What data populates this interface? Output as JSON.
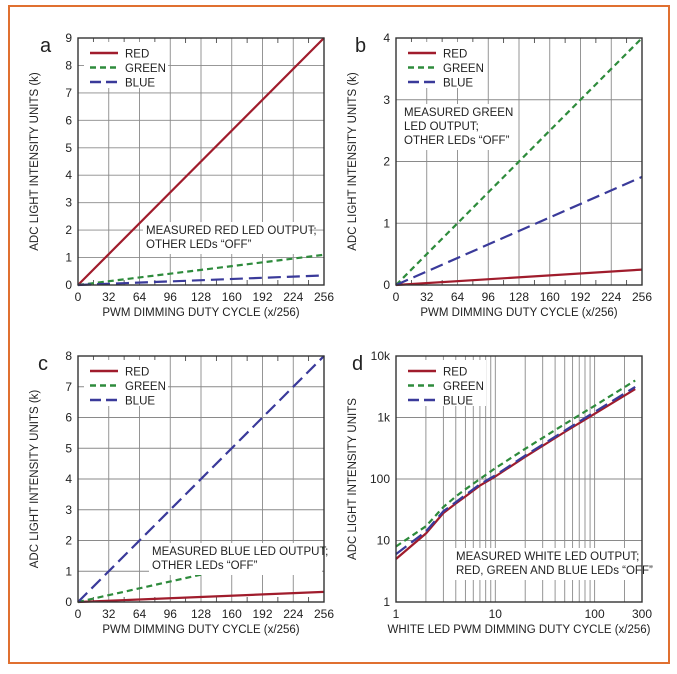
{
  "colors": {
    "frame": "#e07030",
    "red": "#a01c2c",
    "green": "#2e8b3c",
    "blue": "#3a3a9a",
    "grid": "#8a8a8a",
    "axis": "#333333"
  },
  "legend": [
    {
      "key": "red",
      "label": "RED",
      "style": "solid"
    },
    {
      "key": "green",
      "label": "GREEN",
      "style": "short-dash"
    },
    {
      "key": "blue",
      "label": "BLUE",
      "style": "long-dash"
    }
  ],
  "chart_data": [
    {
      "panel": "a",
      "type": "line",
      "title": "",
      "xlabel": "PWM DIMMING DUTY CYCLE (x/256)",
      "ylabel": "ADC LIGHT INTENSITY UNITS (k)",
      "xscale": "linear",
      "yscale": "linear",
      "xlim": [
        0,
        256
      ],
      "ylim": [
        0,
        9
      ],
      "xticks": [
        0,
        32,
        64,
        96,
        128,
        160,
        192,
        224,
        256
      ],
      "xtick_labels": [
        "0",
        "32",
        "64",
        "96",
        "128",
        "160",
        "192",
        "224",
        "256"
      ],
      "yticks": [
        0,
        1,
        2,
        3,
        4,
        5,
        6,
        7,
        8,
        9
      ],
      "ytick_labels": [
        "0",
        "1",
        "2",
        "3",
        "4",
        "5",
        "6",
        "7",
        "8",
        "9"
      ],
      "ygrid": [
        0,
        1,
        2,
        3,
        4,
        5,
        6,
        7,
        8,
        9
      ],
      "grid": true,
      "legend_position": "top-left",
      "annotation": [
        "MEASURED RED LED OUTPUT;",
        "OTHER LEDs “OFF”"
      ],
      "annotation_position": "lower-middle",
      "series": [
        {
          "name": "RED",
          "x": [
            0,
            256
          ],
          "y": [
            0,
            9.0
          ]
        },
        {
          "name": "GREEN",
          "x": [
            0,
            256
          ],
          "y": [
            0,
            1.1
          ]
        },
        {
          "name": "BLUE",
          "x": [
            0,
            256
          ],
          "y": [
            0,
            0.35
          ]
        }
      ]
    },
    {
      "panel": "b",
      "type": "line",
      "title": "",
      "xlabel": "PWM DIMMING DUTY CYCLE (x/256)",
      "ylabel": "ADC LIGHT INTENSITY UNITS (k)",
      "xscale": "linear",
      "yscale": "linear",
      "xlim": [
        0,
        256
      ],
      "ylim": [
        0,
        4
      ],
      "xticks": [
        0,
        32,
        64,
        96,
        128,
        160,
        192,
        224,
        256
      ],
      "xtick_labels": [
        "0",
        "32",
        "64",
        "96",
        "128",
        "160",
        "192",
        "224",
        "256"
      ],
      "yticks": [
        0,
        1,
        2,
        3,
        4
      ],
      "ytick_labels": [
        "0",
        "1",
        "2",
        "3",
        "4"
      ],
      "ygrid": [
        0,
        1,
        2,
        3,
        4
      ],
      "grid": true,
      "legend_position": "top-left",
      "annotation": [
        "MEASURED GREEN",
        "LED OUTPUT;",
        "OTHER LEDs “OFF”"
      ],
      "annotation_position": "upper-left",
      "series": [
        {
          "name": "RED",
          "x": [
            0,
            256
          ],
          "y": [
            0,
            0.25
          ]
        },
        {
          "name": "GREEN",
          "x": [
            0,
            256
          ],
          "y": [
            0,
            4.0
          ]
        },
        {
          "name": "BLUE",
          "x": [
            0,
            256
          ],
          "y": [
            0,
            1.75
          ]
        }
      ]
    },
    {
      "panel": "c",
      "type": "line",
      "title": "",
      "xlabel": "PWM DIMMING DUTY CYCLE (x/256)",
      "ylabel": "ADC LIGHT INTENSITY UNITS (k)",
      "xscale": "linear",
      "yscale": "linear",
      "xlim": [
        0,
        256
      ],
      "ylim": [
        0,
        8
      ],
      "xticks": [
        0,
        32,
        64,
        96,
        128,
        160,
        192,
        224,
        256
      ],
      "xtick_labels": [
        "0",
        "32",
        "64",
        "96",
        "128",
        "160",
        "192",
        "224",
        "256"
      ],
      "yticks": [
        0,
        1,
        2,
        3,
        4,
        5,
        6,
        7,
        8
      ],
      "ytick_labels": [
        "0",
        "1",
        "2",
        "3",
        "4",
        "5",
        "6",
        "7",
        "8"
      ],
      "ygrid": [
        0,
        1,
        2,
        3,
        4,
        5,
        6,
        7,
        8
      ],
      "grid": true,
      "legend_position": "top-left",
      "annotation": [
        "MEASURED BLUE LED OUTPUT;",
        "OTHER LEDs “OFF”"
      ],
      "annotation_position": "lower-middle",
      "series": [
        {
          "name": "RED",
          "x": [
            0,
            256
          ],
          "y": [
            0,
            0.33
          ]
        },
        {
          "name": "GREEN",
          "x": [
            0,
            256
          ],
          "y": [
            0,
            1.78
          ]
        },
        {
          "name": "BLUE",
          "x": [
            0,
            256
          ],
          "y": [
            0,
            8.0
          ]
        }
      ]
    },
    {
      "panel": "d",
      "type": "line",
      "title": "",
      "xlabel": "WHITE LED PWM DIMMING DUTY CYCLE (x/256)",
      "ylabel": "ADC LIGHT INTENSITY UNITS",
      "xscale": "log",
      "yscale": "log",
      "xlim": [
        1,
        300
      ],
      "ylim": [
        1,
        10000
      ],
      "xticks": [
        1,
        10,
        100,
        300
      ],
      "xtick_labels": [
        "1",
        "10",
        "100",
        "300"
      ],
      "yticks": [
        1,
        10,
        100,
        1000,
        10000
      ],
      "ytick_labels": [
        "1",
        "10",
        "100",
        "1k",
        "10k"
      ],
      "grid": true,
      "legend_position": "top-left",
      "annotation": [
        "MEASURED WHITE LED OUTPUT;",
        "RED, GREEN AND BLUE LEDs “OFF”"
      ],
      "annotation_position": "bottom-right",
      "series": [
        {
          "name": "RED",
          "x": [
            1,
            2,
            3,
            4,
            5,
            7,
            10,
            20,
            50,
            100,
            256
          ],
          "y": [
            5,
            13,
            28,
            40,
            52,
            78,
            110,
            230,
            580,
            1150,
            2900
          ]
        },
        {
          "name": "GREEN",
          "x": [
            1,
            2,
            3,
            4,
            5,
            7,
            10,
            20,
            50,
            100,
            256
          ],
          "y": [
            8,
            17,
            35,
            52,
            68,
            100,
            150,
            310,
            780,
            1550,
            4000
          ]
        },
        {
          "name": "BLUE",
          "x": [
            1,
            2,
            3,
            4,
            5,
            7,
            10,
            20,
            50,
            100,
            256
          ],
          "y": [
            6,
            14,
            30,
            42,
            55,
            82,
            115,
            240,
            610,
            1230,
            3150
          ]
        }
      ]
    }
  ]
}
